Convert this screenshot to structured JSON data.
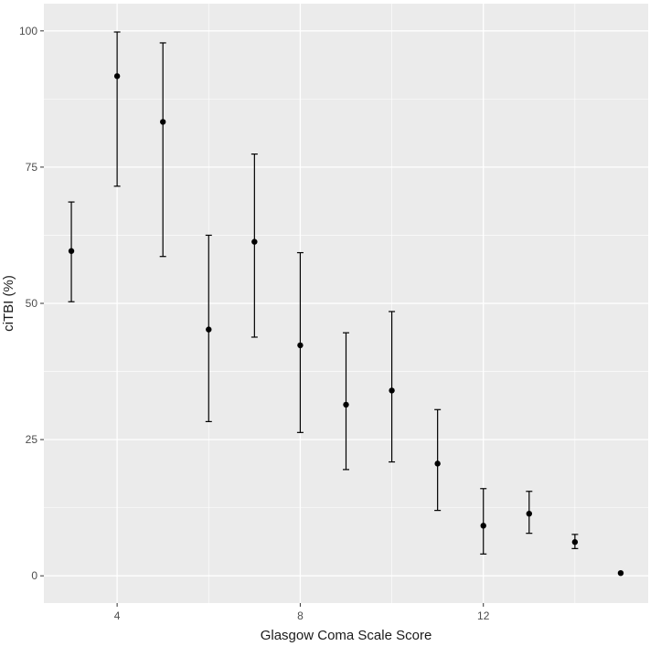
{
  "chart_data": {
    "type": "scatter",
    "title": "",
    "xlabel": "Glasgow Coma Scale Score",
    "ylabel": "ciTBI (%)",
    "xlim": [
      2.4,
      15.6
    ],
    "ylim": [
      -5,
      105
    ],
    "x_ticks": [
      4,
      8,
      12
    ],
    "y_ticks": [
      0,
      25,
      50,
      75,
      100
    ],
    "grid": true,
    "points": [
      {
        "x": 3,
        "y": 59.6,
        "lower": 50.3,
        "upper": 68.6
      },
      {
        "x": 4,
        "y": 91.7,
        "lower": 71.5,
        "upper": 99.8
      },
      {
        "x": 5,
        "y": 83.3,
        "lower": 58.6,
        "upper": 97.8
      },
      {
        "x": 6,
        "y": 45.2,
        "lower": 28.3,
        "upper": 62.5
      },
      {
        "x": 7,
        "y": 61.3,
        "lower": 43.8,
        "upper": 77.4
      },
      {
        "x": 8,
        "y": 42.3,
        "lower": 26.3,
        "upper": 59.3
      },
      {
        "x": 9,
        "y": 31.4,
        "lower": 19.5,
        "upper": 44.6
      },
      {
        "x": 10,
        "y": 34.0,
        "lower": 20.9,
        "upper": 48.5
      },
      {
        "x": 11,
        "y": 20.6,
        "lower": 12.0,
        "upper": 30.5
      },
      {
        "x": 12,
        "y": 9.2,
        "lower": 4.0,
        "upper": 16.0
      },
      {
        "x": 13,
        "y": 11.4,
        "lower": 7.8,
        "upper": 15.5
      },
      {
        "x": 14,
        "y": 6.2,
        "lower": 5.0,
        "upper": 7.6
      },
      {
        "x": 15,
        "y": 0.5,
        "lower": 0.5,
        "upper": 0.5
      }
    ]
  }
}
